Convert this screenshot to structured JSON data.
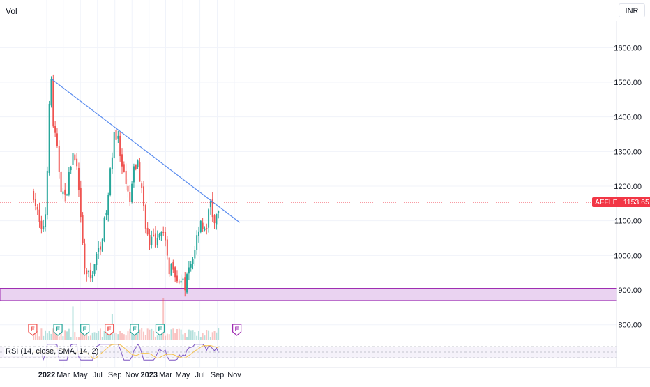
{
  "header": {
    "vol_label": "Vol",
    "currency": "INR"
  },
  "rsi": {
    "label": "RSI (14, close, SMA, 14, 2)",
    "upper_band": 70,
    "lower_band": 30
  },
  "ticker": {
    "symbol": "AFFLE",
    "last_price": "1153.65"
  },
  "colors": {
    "up": "#26a69a",
    "down": "#ef5350",
    "trendline": "#5b8def",
    "support_zone": "#9c27b0",
    "support_fill": "#ead3f1",
    "rsi_line": "#7e57c2",
    "rsi_sma": "#f5c451",
    "last_price": "#f23645",
    "earnings_past": "#ef5350",
    "earnings_future": "#26a69a"
  },
  "chart_data": {
    "type": "candlestick",
    "symbol": "AFFLE",
    "currency": "INR",
    "y_ticks": [
      "1600.00",
      "1500.00",
      "1400.00",
      "1300.00",
      "1200.00",
      "1100.00",
      "1000.00",
      "900.00",
      "800.00"
    ],
    "x_ticks": [
      "2022",
      "Mar",
      "May",
      "Jul",
      "Sep",
      "Nov",
      "2023",
      "Mar",
      "May",
      "Jul",
      "Sep",
      "Nov"
    ],
    "price_path": [
      [
        "2021-11-15",
        1180
      ],
      [
        "2021-11-29",
        1120
      ],
      [
        "2021-12-13",
        1060
      ],
      [
        "2021-12-27",
        1120
      ],
      [
        "2022-01-03",
        1260
      ],
      [
        "2022-01-10",
        1420
      ],
      [
        "2022-01-17",
        1510
      ],
      [
        "2022-01-24",
        1380
      ],
      [
        "2022-02-07",
        1300
      ],
      [
        "2022-02-21",
        1200
      ],
      [
        "2022-03-07",
        1160
      ],
      [
        "2022-03-21",
        1230
      ],
      [
        "2022-04-04",
        1290
      ],
      [
        "2022-04-18",
        1250
      ],
      [
        "2022-05-02",
        1100
      ],
      [
        "2022-05-16",
        960
      ],
      [
        "2022-06-06",
        930
      ],
      [
        "2022-06-20",
        980
      ],
      [
        "2022-07-04",
        1010
      ],
      [
        "2022-07-18",
        1060
      ],
      [
        "2022-08-01",
        1120
      ],
      [
        "2022-08-15",
        1230
      ],
      [
        "2022-08-29",
        1360
      ],
      [
        "2022-09-12",
        1330
      ],
      [
        "2022-09-26",
        1250
      ],
      [
        "2022-10-10",
        1200
      ],
      [
        "2022-10-24",
        1150
      ],
      [
        "2022-11-07",
        1240
      ],
      [
        "2022-11-21",
        1270
      ],
      [
        "2022-12-05",
        1190
      ],
      [
        "2022-12-19",
        1100
      ],
      [
        "2023-01-02",
        1020
      ],
      [
        "2023-01-16",
        1050
      ],
      [
        "2023-01-30",
        1030
      ],
      [
        "2023-02-13",
        1090
      ],
      [
        "2023-02-27",
        1030
      ],
      [
        "2023-03-13",
        960
      ],
      [
        "2023-03-27",
        980
      ],
      [
        "2023-04-10",
        940
      ],
      [
        "2023-04-24",
        920
      ],
      [
        "2023-05-08",
        910
      ],
      [
        "2023-05-22",
        950
      ],
      [
        "2023-06-05",
        990
      ],
      [
        "2023-06-19",
        1050
      ],
      [
        "2023-07-03",
        1110
      ],
      [
        "2023-07-17",
        1060
      ],
      [
        "2023-07-31",
        1110
      ],
      [
        "2023-08-07",
        1160
      ],
      [
        "2023-08-21",
        1090
      ],
      [
        "2023-09-04",
        1110
      ],
      [
        "2023-09-11",
        1175
      ]
    ],
    "trendline": {
      "from": [
        "2022-01-17",
        1510
      ],
      "to": [
        "2023-11-20",
        1095
      ]
    },
    "support_zone": [
      870,
      905
    ],
    "last_price": 1153.65,
    "earnings_markers": [
      {
        "date": "2021-11-12",
        "label": "E",
        "status": "past"
      },
      {
        "date": "2022-02-10",
        "label": "E",
        "status": "released"
      },
      {
        "date": "2022-05-17",
        "label": "E",
        "status": "released"
      },
      {
        "date": "2022-08-12",
        "label": "E",
        "status": "past"
      },
      {
        "date": "2022-11-10",
        "label": "E",
        "status": "released"
      },
      {
        "date": "2023-02-09",
        "label": "E",
        "status": "released"
      },
      {
        "date": "2023-11-10",
        "label": "E",
        "status": "upcoming"
      }
    ],
    "rsi_range": [
      0,
      100
    ],
    "grid": true
  }
}
